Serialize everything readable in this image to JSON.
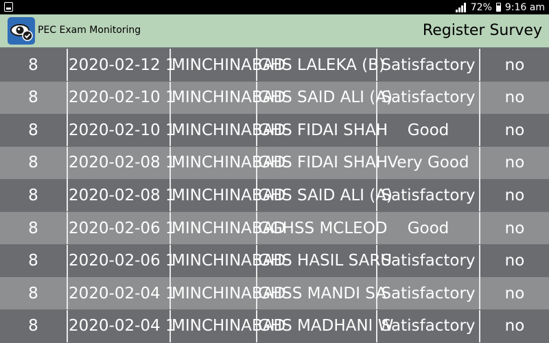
{
  "status_bar": {
    "battery": "72%",
    "time": "9:16 am"
  },
  "header": {
    "app_name": "PEC Exam Monitoring",
    "title": "Register Survey"
  },
  "rows": [
    {
      "col1": "8",
      "date": "2020-02-12 1",
      "district": "MINCHINABAD",
      "school": "GHS LALEKA (B)",
      "rating": "Satisfactory",
      "flag": "no"
    },
    {
      "col1": "8",
      "date": "2020-02-10 1",
      "district": "MINCHINABAD",
      "school": "GHS SAID ALI (A)",
      "rating": "Satisfactory",
      "flag": "no"
    },
    {
      "col1": "8",
      "date": "2020-02-10 1",
      "district": "MINCHINABAD",
      "school": "GHS FIDAI SHAH",
      "rating": "Good",
      "flag": "no"
    },
    {
      "col1": "8",
      "date": "2020-02-08 1",
      "district": "MINCHINABAD",
      "school": "GHS FIDAI SHAH",
      "rating": "Very Good",
      "flag": "no"
    },
    {
      "col1": "8",
      "date": "2020-02-08 1",
      "district": "MINCHINABAD",
      "school": "GHS SAID ALI (A)",
      "rating": "Satisfactory",
      "flag": "no"
    },
    {
      "col1": "8",
      "date": "2020-02-06 1",
      "district": "MINCHINABAD",
      "school": "GGHSS MCLEOD",
      "rating": "Good",
      "flag": "no"
    },
    {
      "col1": "8",
      "date": "2020-02-06 1",
      "district": "MINCHINABAD",
      "school": "GHS HASIL SARU",
      "rating": "Satisfactory",
      "flag": "no"
    },
    {
      "col1": "8",
      "date": "2020-02-04 1",
      "district": "MINCHINABAD",
      "school": "GHSS MANDI SA",
      "rating": "Satisfactory",
      "flag": "no"
    },
    {
      "col1": "8",
      "date": "2020-02-04 1",
      "district": "MINCHINABAD",
      "school": "GHS MADHANI W",
      "rating": "Satisfactory",
      "flag": "no"
    }
  ]
}
